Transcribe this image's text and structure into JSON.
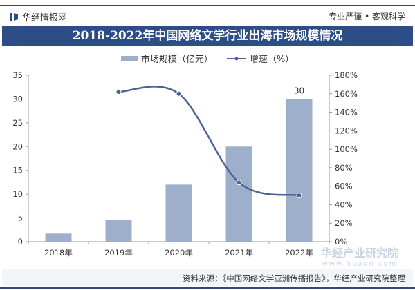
{
  "header": {
    "brand": "华经情报网",
    "slogan": "专业严谨 • 客观科学"
  },
  "chart_data": {
    "type": "bar+line",
    "title": "2018-2022年中国网络文学行业出海市场规模情况",
    "categories": [
      "2018年",
      "2019年",
      "2020年",
      "2021年",
      "2022年"
    ],
    "series": [
      {
        "name": "市场规模（亿元）",
        "type": "bar",
        "axis": "left",
        "values": [
          1.7,
          4.5,
          12,
          20,
          30
        ],
        "color": "#9eafcc"
      },
      {
        "name": "增速（%）",
        "type": "line",
        "axis": "right",
        "values": [
          null,
          162,
          160,
          64,
          50
        ],
        "color": "#4a6496"
      }
    ],
    "data_labels": [
      {
        "category": "2022年",
        "text": "30"
      }
    ],
    "y_left": {
      "lim": [
        0,
        35
      ],
      "ticks": [
        "0",
        "5",
        "10",
        "15",
        "20",
        "25",
        "30",
        "35"
      ]
    },
    "y_right": {
      "lim": [
        0,
        180
      ],
      "ticks": [
        "0%",
        "20%",
        "40%",
        "60%",
        "80%",
        "100%",
        "120%",
        "140%",
        "160%",
        "180%"
      ]
    },
    "grid": false,
    "legend": "top-center"
  },
  "source": "资料来源：《中国网络文学亚洲传播报告》，华经产业研究院整理",
  "watermark": "华经产业研究院 www.huaon.com"
}
